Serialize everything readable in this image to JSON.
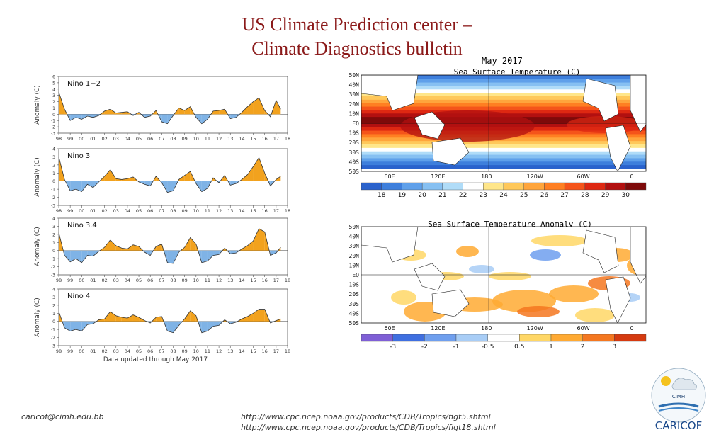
{
  "slide": {
    "title_line1": "US Climate Prediction center –",
    "title_line2": "Climate Diagnostics bulletin",
    "footer_email": "caricof@cimh.edu.bb",
    "footer_url1": "http://www.cpc.ncep.noaa.gov/products/CDB/Tropics/figt5.shtml",
    "footer_url2": "http://www.cpc.ncep.noaa.gov/products/CDB/Tropics/figt18.shtml",
    "logo_text": "CARICOF",
    "logo_sub": "CIMH"
  },
  "colors": {
    "positive": "#f2a21e",
    "negative": "#7fb3e6",
    "title": "#8b1a1a"
  },
  "chart_data": [
    {
      "type": "area",
      "title": "Nino 1+2",
      "ylabel": "Anomaly (C)",
      "x_ticks": [
        "98",
        "99",
        "00",
        "01",
        "02",
        "03",
        "04",
        "05",
        "06",
        "07",
        "08",
        "09",
        "10",
        "11",
        "12",
        "13",
        "14",
        "15",
        "16",
        "17",
        "18"
      ],
      "y_ticks": [
        "6",
        "5",
        "4",
        "3",
        "2",
        "1",
        "0",
        "-1",
        "-2",
        "-3"
      ],
      "ylim": [
        -3,
        6
      ],
      "x": [
        1998.0,
        1998.5,
        1999.0,
        1999.5,
        2000.0,
        2000.5,
        2001.0,
        2001.5,
        2002.0,
        2002.5,
        2003.0,
        2003.5,
        2004.0,
        2004.5,
        2005.0,
        2005.5,
        2006.0,
        2006.5,
        2007.0,
        2007.5,
        2008.0,
        2008.5,
        2009.0,
        2009.5,
        2010.0,
        2010.5,
        2011.0,
        2011.5,
        2012.0,
        2012.5,
        2013.0,
        2013.5,
        2014.0,
        2014.5,
        2015.0,
        2015.5,
        2016.0,
        2016.5,
        2017.0,
        2017.4
      ],
      "values": [
        3.5,
        0.8,
        -1.0,
        -0.5,
        -0.8,
        -0.3,
        -0.5,
        -0.2,
        0.5,
        0.8,
        0.2,
        0.3,
        0.4,
        -0.2,
        0.3,
        -0.5,
        -0.3,
        0.6,
        -1.2,
        -1.5,
        -0.2,
        1.0,
        0.6,
        1.2,
        -0.5,
        -1.5,
        -0.8,
        0.5,
        0.6,
        0.8,
        -0.7,
        -0.5,
        0.3,
        1.2,
        2.0,
        2.6,
        0.6,
        -0.4,
        2.2,
        0.8
      ]
    },
    {
      "type": "area",
      "title": "Nino 3",
      "ylabel": "Anomaly (C)",
      "x_ticks": [
        "98",
        "99",
        "00",
        "01",
        "02",
        "03",
        "04",
        "05",
        "06",
        "07",
        "08",
        "09",
        "10",
        "11",
        "12",
        "13",
        "14",
        "15",
        "16",
        "17",
        "18"
      ],
      "y_ticks": [
        "4",
        "3",
        "2",
        "1",
        "0",
        "-1",
        "-2",
        "-3"
      ],
      "ylim": [
        -3,
        4
      ],
      "x": [
        1998.0,
        1998.5,
        1999.0,
        1999.5,
        2000.0,
        2000.5,
        2001.0,
        2001.5,
        2002.0,
        2002.5,
        2003.0,
        2003.5,
        2004.0,
        2004.5,
        2005.0,
        2005.5,
        2006.0,
        2006.5,
        2007.0,
        2007.5,
        2008.0,
        2008.5,
        2009.0,
        2009.5,
        2010.0,
        2010.5,
        2011.0,
        2011.5,
        2012.0,
        2012.5,
        2013.0,
        2013.5,
        2014.0,
        2014.5,
        2015.0,
        2015.5,
        2016.0,
        2016.5,
        2017.0,
        2017.4
      ],
      "values": [
        3.0,
        0.2,
        -1.2,
        -1.0,
        -1.3,
        -0.4,
        -0.8,
        -0.1,
        0.6,
        1.4,
        0.3,
        0.2,
        0.3,
        0.5,
        -0.1,
        -0.4,
        -0.6,
        0.6,
        -0.2,
        -1.4,
        -1.2,
        0.2,
        0.7,
        1.2,
        -0.3,
        -1.3,
        -0.9,
        0.4,
        -0.2,
        0.7,
        -0.5,
        -0.3,
        0.2,
        0.8,
        1.8,
        2.9,
        1.0,
        -0.6,
        0.2,
        0.6
      ]
    },
    {
      "type": "area",
      "title": "Nino 3.4",
      "ylabel": "Anomaly (C)",
      "x_ticks": [
        "98",
        "99",
        "00",
        "01",
        "02",
        "03",
        "04",
        "05",
        "06",
        "07",
        "08",
        "09",
        "10",
        "11",
        "12",
        "13",
        "14",
        "15",
        "16",
        "17",
        "18"
      ],
      "y_ticks": [
        "4",
        "3",
        "2",
        "1",
        "0",
        "-1",
        "-2",
        "-3"
      ],
      "ylim": [
        -3,
        4
      ],
      "x": [
        1998.0,
        1998.5,
        1999.0,
        1999.5,
        2000.0,
        2000.5,
        2001.0,
        2001.5,
        2002.0,
        2002.5,
        2003.0,
        2003.5,
        2004.0,
        2004.5,
        2005.0,
        2005.5,
        2006.0,
        2006.5,
        2007.0,
        2007.5,
        2008.0,
        2008.5,
        2009.0,
        2009.5,
        2010.0,
        2010.5,
        2011.0,
        2011.5,
        2012.0,
        2012.5,
        2013.0,
        2013.5,
        2014.0,
        2014.5,
        2015.0,
        2015.5,
        2016.0,
        2016.5,
        2017.0,
        2017.4
      ],
      "values": [
        2.2,
        -0.6,
        -1.4,
        -1.0,
        -1.5,
        -0.6,
        -0.7,
        -0.1,
        0.4,
        1.3,
        0.6,
        0.3,
        0.2,
        0.7,
        0.5,
        -0.2,
        -0.6,
        0.5,
        0.8,
        -1.5,
        -1.6,
        -0.2,
        0.4,
        1.6,
        0.8,
        -1.5,
        -1.3,
        -0.6,
        -0.5,
        0.3,
        -0.4,
        -0.3,
        0.2,
        0.6,
        1.2,
        2.7,
        2.3,
        -0.6,
        -0.3,
        0.4
      ]
    },
    {
      "type": "area",
      "title": "Nino 4",
      "ylabel": "Anomaly (C)",
      "x_ticks": [
        "98",
        "99",
        "00",
        "01",
        "02",
        "03",
        "04",
        "05",
        "06",
        "07",
        "08",
        "09",
        "10",
        "11",
        "12",
        "13",
        "14",
        "15",
        "16",
        "17",
        "18"
      ],
      "y_ticks": [
        "4",
        "3",
        "2",
        "1",
        "0",
        "-1",
        "-2",
        "-3"
      ],
      "ylim": [
        -3,
        4
      ],
      "x": [
        1998.0,
        1998.5,
        1999.0,
        1999.5,
        2000.0,
        2000.5,
        2001.0,
        2001.5,
        2002.0,
        2002.5,
        2003.0,
        2003.5,
        2004.0,
        2004.5,
        2005.0,
        2005.5,
        2006.0,
        2006.5,
        2007.0,
        2007.5,
        2008.0,
        2008.5,
        2009.0,
        2009.5,
        2010.0,
        2010.5,
        2011.0,
        2011.5,
        2012.0,
        2012.5,
        2013.0,
        2013.5,
        2014.0,
        2014.5,
        2015.0,
        2015.5,
        2016.0,
        2016.5,
        2017.0,
        2017.4
      ],
      "values": [
        1.2,
        -0.8,
        -1.2,
        -1.0,
        -1.2,
        -0.4,
        -0.3,
        0.2,
        0.3,
        1.2,
        0.7,
        0.5,
        0.4,
        0.8,
        0.5,
        0.1,
        -0.2,
        0.5,
        0.6,
        -1.2,
        -1.4,
        -0.5,
        0.3,
        1.3,
        0.7,
        -1.4,
        -1.2,
        -0.6,
        -0.5,
        0.2,
        -0.3,
        -0.1,
        0.3,
        0.6,
        1.0,
        1.5,
        1.5,
        -0.2,
        0.1,
        0.3
      ],
      "xlabel": "Data updated through May 2017"
    },
    {
      "type": "heatmap",
      "month": "May 2017",
      "title": "Sea Surface Temperature (C)",
      "lat_labels": [
        "50N",
        "40N",
        "30N",
        "20N",
        "10N",
        "EQ",
        "10S",
        "20S",
        "30S",
        "40S",
        "50S"
      ],
      "lon_labels": [
        "60E",
        "120E",
        "180",
        "120W",
        "60W",
        "0"
      ],
      "colorbar_ticks": [
        "18",
        "19",
        "20",
        "21",
        "22",
        "23",
        "24",
        "25",
        "26",
        "27",
        "28",
        "29",
        "30"
      ],
      "colorbar_colors": [
        "#2a62cc",
        "#3e7fdc",
        "#5fa0ea",
        "#86c0f2",
        "#b0dcf8",
        "#ffffff",
        "#ffe68a",
        "#ffc85a",
        "#ffa53c",
        "#ff7f22",
        "#f5541a",
        "#de2812",
        "#b21010",
        "#7e0a0a"
      ]
    },
    {
      "type": "heatmap",
      "title": "Sea Surface Temperature Anomaly (C)",
      "lat_labels": [
        "50N",
        "40N",
        "30N",
        "20N",
        "10N",
        "EQ",
        "10S",
        "20S",
        "30S",
        "40S",
        "50S"
      ],
      "lon_labels": [
        "60E",
        "120E",
        "180",
        "120W",
        "60W",
        "0"
      ],
      "colorbar_ticks": [
        "-3",
        "-2",
        "-1",
        "-0.5",
        "0.5",
        "1",
        "2",
        "3"
      ],
      "colorbar_colors": [
        "#7f5fd6",
        "#3f6fe0",
        "#6f9fee",
        "#a8cdf6",
        "#ffffff",
        "#ffd766",
        "#ffaa33",
        "#f47720",
        "#d53a10"
      ]
    }
  ]
}
